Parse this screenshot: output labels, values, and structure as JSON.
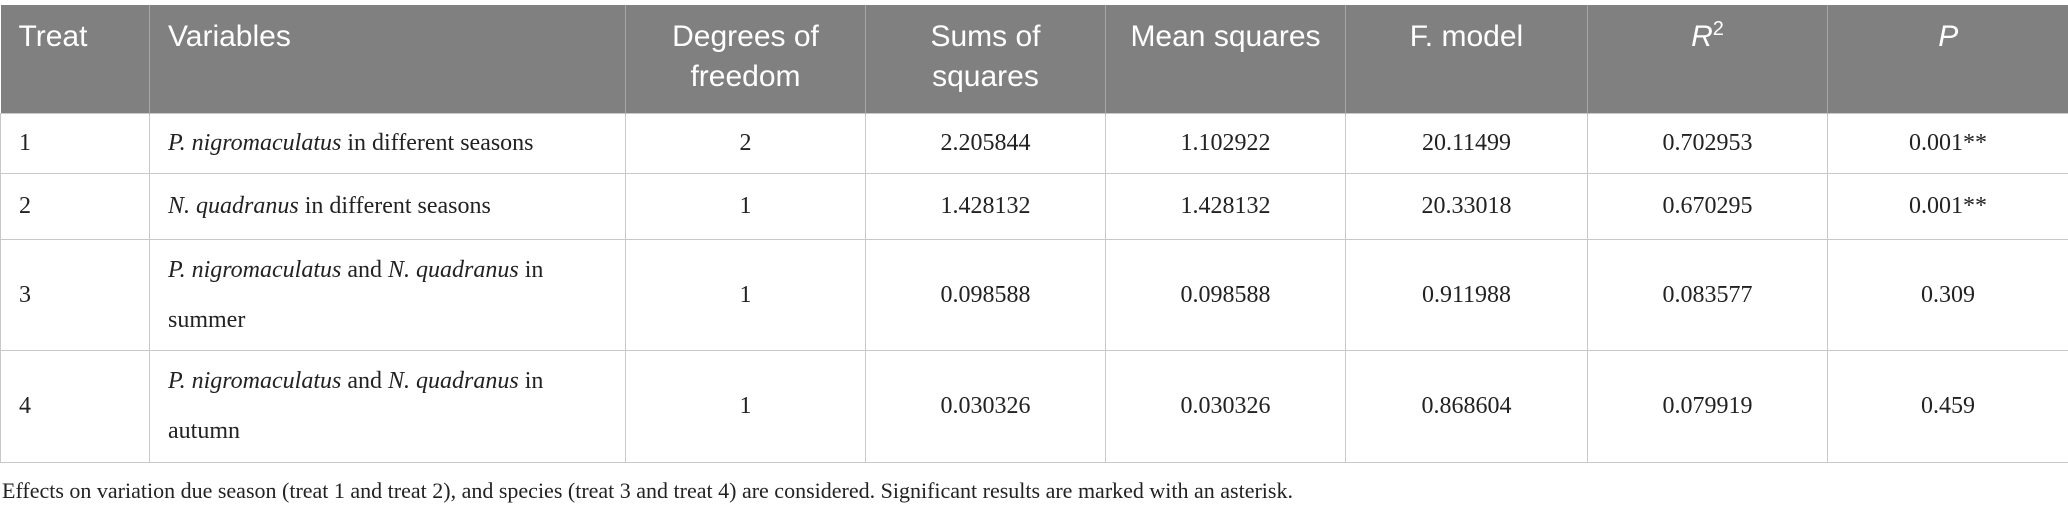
{
  "table": {
    "headers": [
      [
        {
          "text": "Treat"
        }
      ],
      [
        {
          "text": "Variables"
        }
      ],
      [
        {
          "text": "Degrees of freedom"
        }
      ],
      [
        {
          "text": "Sums of squares"
        }
      ],
      [
        {
          "text": "Mean squares"
        }
      ],
      [
        {
          "text": "F. model"
        }
      ],
      [
        {
          "text": "R",
          "style": "italic"
        },
        {
          "text": "2",
          "style": "sup"
        }
      ],
      [
        {
          "text": "P",
          "style": "italic"
        }
      ]
    ],
    "rows": [
      [
        [
          {
            "text": "1"
          }
        ],
        [
          {
            "text": "P. nigromaculatus",
            "style": "italic"
          },
          {
            "text": " in different seasons"
          }
        ],
        [
          {
            "text": "2"
          }
        ],
        [
          {
            "text": "2.205844"
          }
        ],
        [
          {
            "text": "1.102922"
          }
        ],
        [
          {
            "text": "20.11499"
          }
        ],
        [
          {
            "text": "0.702953"
          }
        ],
        [
          {
            "text": "0.001**"
          }
        ]
      ],
      [
        [
          {
            "text": "2"
          }
        ],
        [
          {
            "text": "N. quadranus",
            "style": "italic"
          },
          {
            "text": " in different seasons"
          }
        ],
        [
          {
            "text": "1"
          }
        ],
        [
          {
            "text": "1.428132"
          }
        ],
        [
          {
            "text": "1.428132"
          }
        ],
        [
          {
            "text": "20.33018"
          }
        ],
        [
          {
            "text": "0.670295"
          }
        ],
        [
          {
            "text": "0.001**"
          }
        ]
      ],
      [
        [
          {
            "text": "3"
          }
        ],
        [
          {
            "text": "P. nigromaculatus",
            "style": "italic"
          },
          {
            "text": " and "
          },
          {
            "text": "N. quadranus",
            "style": "italic"
          },
          {
            "text": " in summer"
          }
        ],
        [
          {
            "text": "1"
          }
        ],
        [
          {
            "text": "0.098588"
          }
        ],
        [
          {
            "text": "0.098588"
          }
        ],
        [
          {
            "text": "0.911988"
          }
        ],
        [
          {
            "text": "0.083577"
          }
        ],
        [
          {
            "text": "0.309"
          }
        ]
      ],
      [
        [
          {
            "text": "4"
          }
        ],
        [
          {
            "text": "P. nigromaculatus",
            "style": "italic"
          },
          {
            "text": " and "
          },
          {
            "text": "N. quadranus",
            "style": "italic"
          },
          {
            "text": " in autumn"
          }
        ],
        [
          {
            "text": "1"
          }
        ],
        [
          {
            "text": "0.030326"
          }
        ],
        [
          {
            "text": "0.030326"
          }
        ],
        [
          {
            "text": "0.868604"
          }
        ],
        [
          {
            "text": "0.079919"
          }
        ],
        [
          {
            "text": "0.459"
          }
        ]
      ]
    ],
    "footnote": "Effects on variation due season (treat 1 and treat 2), and species (treat 3 and treat 4) are considered. Significant results are marked with an asterisk."
  }
}
